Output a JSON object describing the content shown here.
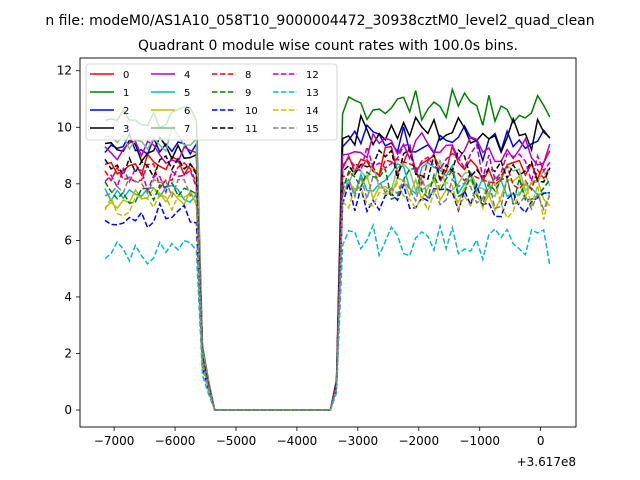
{
  "figure": {
    "suptitle": "n file: modeM0/AS1A10_058T10_9000004472_30938cztM0_level2_quad_clean",
    "title": "Quadrant 0 module wise count rates with 100.0s bins.",
    "offset_label": "+3.617e8"
  },
  "chart_data": {
    "type": "line",
    "title": "Quadrant 0 module wise count rates with 100.0s bins.",
    "xlabel": "",
    "ylabel": "",
    "x_offset": 361700000,
    "xlim": [
      -7560,
      580
    ],
    "ylim": [
      -0.6,
      12.45
    ],
    "xticks": [
      -7000,
      -6000,
      -5000,
      -4000,
      -3000,
      -2000,
      -1000,
      0
    ],
    "yticks": [
      0,
      2,
      4,
      6,
      8,
      10,
      12
    ],
    "grid": false,
    "legend": {
      "placement": "top-left",
      "columns": 4
    },
    "series": [
      {
        "name": "0",
        "color": "#ff0000",
        "dash": "solid",
        "pre": 8.7,
        "post": 8.8
      },
      {
        "name": "1",
        "color": "#008000",
        "dash": "solid",
        "pre": 10.3,
        "post": 10.8
      },
      {
        "name": "2",
        "color": "#0000ff",
        "dash": "solid",
        "pre": 9.5,
        "post": 9.6
      },
      {
        "name": "3",
        "color": "#000000",
        "dash": "solid",
        "pre": 9.2,
        "post": 9.9
      },
      {
        "name": "4",
        "color": "#bf00bf",
        "dash": "solid",
        "pre": 9.1,
        "post": 9.3
      },
      {
        "name": "5",
        "color": "#00bfbf",
        "dash": "solid",
        "pre": 7.8,
        "post": 8.2
      },
      {
        "name": "6",
        "color": "#bfbf00",
        "dash": "solid",
        "pre": 7.5,
        "post": 7.9
      },
      {
        "name": "7",
        "color": "#7fbf7f",
        "dash": "solid",
        "pre": 9.6,
        "post": 8.3
      },
      {
        "name": "8",
        "color": "#ff0000",
        "dash": "dashed",
        "pre": 8.3,
        "post": 8.5
      },
      {
        "name": "9",
        "color": "#008000",
        "dash": "dashed",
        "pre": 7.7,
        "post": 8.0
      },
      {
        "name": "10",
        "color": "#0000ff",
        "dash": "dashed",
        "pre": 6.9,
        "post": 7.5
      },
      {
        "name": "11",
        "color": "#000000",
        "dash": "dashed",
        "pre": 8.6,
        "post": 8.7
      },
      {
        "name": "12",
        "color": "#bf00bf",
        "dash": "dashed",
        "pre": 8.1,
        "post": 8.9
      },
      {
        "name": "13",
        "color": "#00bfbf",
        "dash": "dashed",
        "pre": 5.6,
        "post": 6.0
      },
      {
        "name": "14",
        "color": "#bfbf00",
        "dash": "dashed",
        "pre": 7.3,
        "post": 7.6
      },
      {
        "name": "15",
        "color": "#7f7f7f",
        "dash": "dashed",
        "pre": 7.9,
        "post": 7.8
      }
    ]
  }
}
